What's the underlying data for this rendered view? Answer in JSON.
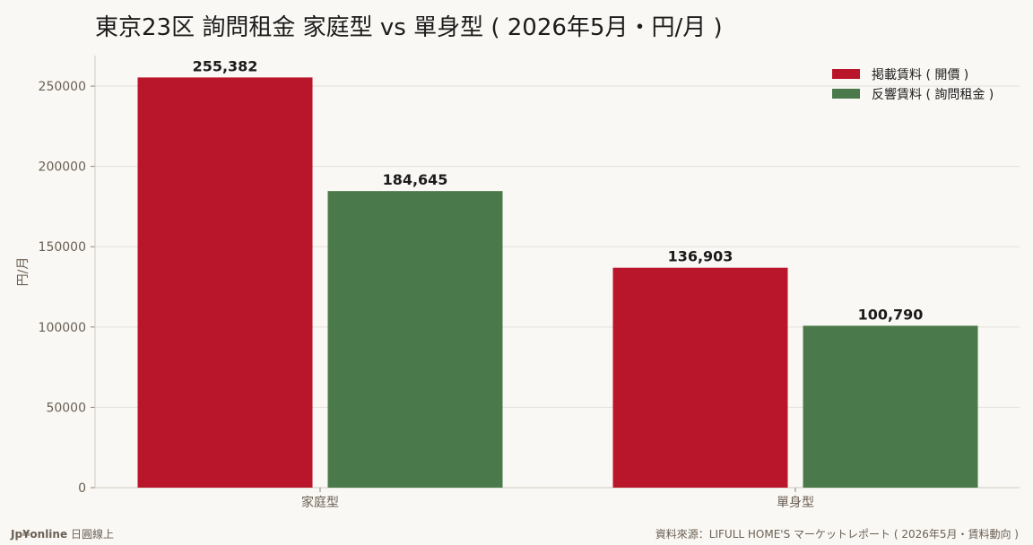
{
  "chart_data": {
    "type": "bar",
    "title": "東京23区 詢問租金 家庭型 vs 單身型 ( 2026年5月・円/月 )",
    "ylabel": "円/月",
    "xlabel": "",
    "ylim": [
      0,
      269000
    ],
    "yticks": [
      0,
      50000,
      100000,
      150000,
      200000,
      250000
    ],
    "grid": true,
    "legend_position": "top-right",
    "categories": [
      "家庭型",
      "單身型"
    ],
    "series": [
      {
        "name": "掲載賃料 ( 開價 )",
        "color": "#b9152b",
        "values": [
          255382,
          136903
        ],
        "labels": [
          "255,382",
          "136,903"
        ]
      },
      {
        "name": "反響賃料 ( 詢問租金 )",
        "color": "#4a7a4b",
        "values": [
          184645,
          100790
        ],
        "labels": [
          "184,645",
          "100,790"
        ]
      }
    ]
  },
  "footer": {
    "brand": "Jp¥online",
    "brand_sub": "日圓線上",
    "source": "資料來源：LIFULL HOME'S マーケットレポート ( 2026年5月・賃料動向 )"
  }
}
